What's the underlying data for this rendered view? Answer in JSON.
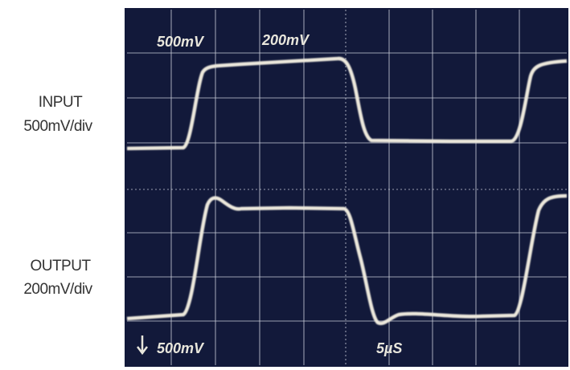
{
  "labels": {
    "input": "INPUT",
    "input_scale": "500mV/div",
    "output": "OUTPUT",
    "output_scale": "200mV/div"
  },
  "screen": {
    "ch1_scale": "500mV",
    "ch2_scale": "200mV",
    "ground_scale": "500mV",
    "timebase": "5µS"
  }
}
